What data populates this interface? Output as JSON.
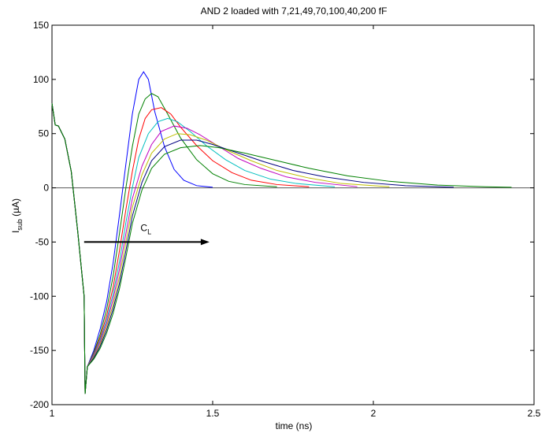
{
  "chart_data": {
    "type": "line",
    "title": "AND 2 loaded with 7,21,49,70,100,40,200 fF",
    "xlabel": "time (ns)",
    "ylabel_main": "I",
    "ylabel_sub": "sub",
    "ylabel_unit": " (µA)",
    "xlim": [
      1,
      2.5
    ],
    "ylim": [
      -200,
      150
    ],
    "xticks": [
      1,
      1.5,
      2,
      2.5
    ],
    "xtick_labels": [
      "1",
      "1.5",
      "2",
      "2.5"
    ],
    "yticks": [
      -200,
      -150,
      -100,
      -50,
      0,
      50,
      100,
      150
    ],
    "ytick_labels": [
      "-200",
      "-150",
      "-100",
      "-50",
      "0",
      "50",
      "100",
      "150"
    ],
    "grid": false,
    "zero_line": 0,
    "annotation": {
      "text_main": "C",
      "text_sub": "L",
      "arrow_x": [
        1.1,
        1.49
      ],
      "arrow_y": -50,
      "label_x": 1.3,
      "label_y": -42
    },
    "series": [
      {
        "color": "#0000ff",
        "values": [
          [
            1,
            78
          ],
          [
            1.01,
            58
          ],
          [
            1.02,
            57
          ],
          [
            1.04,
            45
          ],
          [
            1.06,
            15
          ],
          [
            1.08,
            -40
          ],
          [
            1.1,
            -100
          ],
          [
            1.103,
            -190
          ],
          [
            1.11,
            -165
          ],
          [
            1.13,
            -150
          ],
          [
            1.15,
            -130
          ],
          [
            1.17,
            -105
          ],
          [
            1.19,
            -70
          ],
          [
            1.21,
            -25
          ],
          [
            1.23,
            22
          ],
          [
            1.25,
            68
          ],
          [
            1.27,
            100
          ],
          [
            1.285,
            107
          ],
          [
            1.3,
            100
          ],
          [
            1.32,
            70
          ],
          [
            1.35,
            38
          ],
          [
            1.38,
            17
          ],
          [
            1.41,
            7
          ],
          [
            1.45,
            2
          ],
          [
            1.5,
            0.5
          ]
        ]
      },
      {
        "color": "#008000",
        "values": [
          [
            1,
            78
          ],
          [
            1.01,
            58
          ],
          [
            1.02,
            57
          ],
          [
            1.04,
            45
          ],
          [
            1.06,
            15
          ],
          [
            1.08,
            -40
          ],
          [
            1.1,
            -100
          ],
          [
            1.103,
            -190
          ],
          [
            1.11,
            -165
          ],
          [
            1.13,
            -152
          ],
          [
            1.15,
            -135
          ],
          [
            1.17,
            -112
          ],
          [
            1.19,
            -82
          ],
          [
            1.21,
            -42
          ],
          [
            1.23,
            0
          ],
          [
            1.25,
            38
          ],
          [
            1.27,
            68
          ],
          [
            1.29,
            82
          ],
          [
            1.31,
            87
          ],
          [
            1.33,
            84
          ],
          [
            1.36,
            68
          ],
          [
            1.4,
            46
          ],
          [
            1.45,
            26
          ],
          [
            1.5,
            13
          ],
          [
            1.55,
            6
          ],
          [
            1.6,
            3
          ],
          [
            1.7,
            1
          ]
        ]
      },
      {
        "color": "#ff0000",
        "values": [
          [
            1,
            78
          ],
          [
            1.01,
            58
          ],
          [
            1.02,
            57
          ],
          [
            1.04,
            45
          ],
          [
            1.06,
            15
          ],
          [
            1.08,
            -40
          ],
          [
            1.1,
            -100
          ],
          [
            1.103,
            -190
          ],
          [
            1.11,
            -165
          ],
          [
            1.13,
            -153
          ],
          [
            1.15,
            -138
          ],
          [
            1.17,
            -118
          ],
          [
            1.19,
            -92
          ],
          [
            1.21,
            -58
          ],
          [
            1.23,
            -20
          ],
          [
            1.25,
            15
          ],
          [
            1.27,
            45
          ],
          [
            1.29,
            64
          ],
          [
            1.31,
            72
          ],
          [
            1.34,
            74
          ],
          [
            1.37,
            68
          ],
          [
            1.4,
            56
          ],
          [
            1.45,
            39
          ],
          [
            1.5,
            25
          ],
          [
            1.56,
            14
          ],
          [
            1.62,
            7
          ],
          [
            1.7,
            3
          ],
          [
            1.8,
            1
          ]
        ]
      },
      {
        "color": "#00bfbf",
        "values": [
          [
            1,
            78
          ],
          [
            1.01,
            58
          ],
          [
            1.02,
            57
          ],
          [
            1.04,
            45
          ],
          [
            1.06,
            15
          ],
          [
            1.08,
            -40
          ],
          [
            1.1,
            -100
          ],
          [
            1.103,
            -190
          ],
          [
            1.11,
            -165
          ],
          [
            1.13,
            -154
          ],
          [
            1.15,
            -140
          ],
          [
            1.17,
            -122
          ],
          [
            1.19,
            -98
          ],
          [
            1.21,
            -68
          ],
          [
            1.23,
            -32
          ],
          [
            1.25,
            0
          ],
          [
            1.27,
            28
          ],
          [
            1.3,
            50
          ],
          [
            1.33,
            61
          ],
          [
            1.36,
            64
          ],
          [
            1.39,
            61
          ],
          [
            1.43,
            52
          ],
          [
            1.48,
            39
          ],
          [
            1.54,
            26
          ],
          [
            1.6,
            16
          ],
          [
            1.68,
            8
          ],
          [
            1.76,
            4
          ],
          [
            1.88,
            1
          ]
        ]
      },
      {
        "color": "#bf00bf",
        "values": [
          [
            1,
            78
          ],
          [
            1.01,
            58
          ],
          [
            1.02,
            57
          ],
          [
            1.04,
            45
          ],
          [
            1.06,
            15
          ],
          [
            1.08,
            -40
          ],
          [
            1.1,
            -100
          ],
          [
            1.103,
            -190
          ],
          [
            1.11,
            -165
          ],
          [
            1.13,
            -155
          ],
          [
            1.15,
            -142
          ],
          [
            1.17,
            -125
          ],
          [
            1.19,
            -103
          ],
          [
            1.21,
            -75
          ],
          [
            1.23,
            -42
          ],
          [
            1.25,
            -10
          ],
          [
            1.28,
            20
          ],
          [
            1.31,
            40
          ],
          [
            1.34,
            52
          ],
          [
            1.38,
            57
          ],
          [
            1.42,
            55
          ],
          [
            1.46,
            49
          ],
          [
            1.52,
            38
          ],
          [
            1.58,
            27
          ],
          [
            1.65,
            18
          ],
          [
            1.73,
            10
          ],
          [
            1.82,
            5
          ],
          [
            1.95,
            1
          ]
        ]
      },
      {
        "color": "#bfbf00",
        "values": [
          [
            1,
            78
          ],
          [
            1.01,
            58
          ],
          [
            1.02,
            57
          ],
          [
            1.04,
            45
          ],
          [
            1.06,
            15
          ],
          [
            1.08,
            -40
          ],
          [
            1.1,
            -100
          ],
          [
            1.103,
            -190
          ],
          [
            1.11,
            -165
          ],
          [
            1.13,
            -156
          ],
          [
            1.15,
            -144
          ],
          [
            1.17,
            -128
          ],
          [
            1.19,
            -108
          ],
          [
            1.21,
            -82
          ],
          [
            1.23,
            -50
          ],
          [
            1.25,
            -18
          ],
          [
            1.28,
            12
          ],
          [
            1.31,
            32
          ],
          [
            1.35,
            45
          ],
          [
            1.39,
            50
          ],
          [
            1.43,
            49
          ],
          [
            1.48,
            44
          ],
          [
            1.55,
            34
          ],
          [
            1.62,
            25
          ],
          [
            1.7,
            16
          ],
          [
            1.8,
            9
          ],
          [
            1.9,
            4
          ],
          [
            2.05,
            1
          ]
        ]
      },
      {
        "color": "#000080",
        "values": [
          [
            1,
            78
          ],
          [
            1.01,
            58
          ],
          [
            1.02,
            57
          ],
          [
            1.04,
            45
          ],
          [
            1.06,
            15
          ],
          [
            1.08,
            -40
          ],
          [
            1.1,
            -100
          ],
          [
            1.103,
            -190
          ],
          [
            1.11,
            -165
          ],
          [
            1.13,
            -157
          ],
          [
            1.15,
            -146
          ],
          [
            1.17,
            -131
          ],
          [
            1.19,
            -112
          ],
          [
            1.21,
            -88
          ],
          [
            1.23,
            -58
          ],
          [
            1.25,
            -26
          ],
          [
            1.28,
            5
          ],
          [
            1.31,
            25
          ],
          [
            1.35,
            38
          ],
          [
            1.4,
            44
          ],
          [
            1.45,
            44
          ],
          [
            1.5,
            40
          ],
          [
            1.58,
            32
          ],
          [
            1.66,
            24
          ],
          [
            1.75,
            16
          ],
          [
            1.85,
            10
          ],
          [
            1.97,
            5
          ],
          [
            2.1,
            2
          ],
          [
            2.25,
            0.5
          ]
        ]
      },
      {
        "color": "#008000",
        "values": [
          [
            1,
            78
          ],
          [
            1.01,
            58
          ],
          [
            1.02,
            57
          ],
          [
            1.04,
            45
          ],
          [
            1.06,
            15
          ],
          [
            1.08,
            -40
          ],
          [
            1.1,
            -100
          ],
          [
            1.103,
            -190
          ],
          [
            1.11,
            -165
          ],
          [
            1.13,
            -158
          ],
          [
            1.15,
            -148
          ],
          [
            1.17,
            -134
          ],
          [
            1.19,
            -116
          ],
          [
            1.21,
            -93
          ],
          [
            1.23,
            -64
          ],
          [
            1.25,
            -33
          ],
          [
            1.28,
            -2
          ],
          [
            1.31,
            18
          ],
          [
            1.35,
            31
          ],
          [
            1.4,
            37
          ],
          [
            1.46,
            39
          ],
          [
            1.52,
            37
          ],
          [
            1.6,
            32
          ],
          [
            1.7,
            25
          ],
          [
            1.8,
            18
          ],
          [
            1.92,
            11
          ],
          [
            2.05,
            6
          ],
          [
            2.2,
            2.5
          ],
          [
            2.35,
            1
          ],
          [
            2.43,
            0.5
          ]
        ]
      }
    ]
  }
}
